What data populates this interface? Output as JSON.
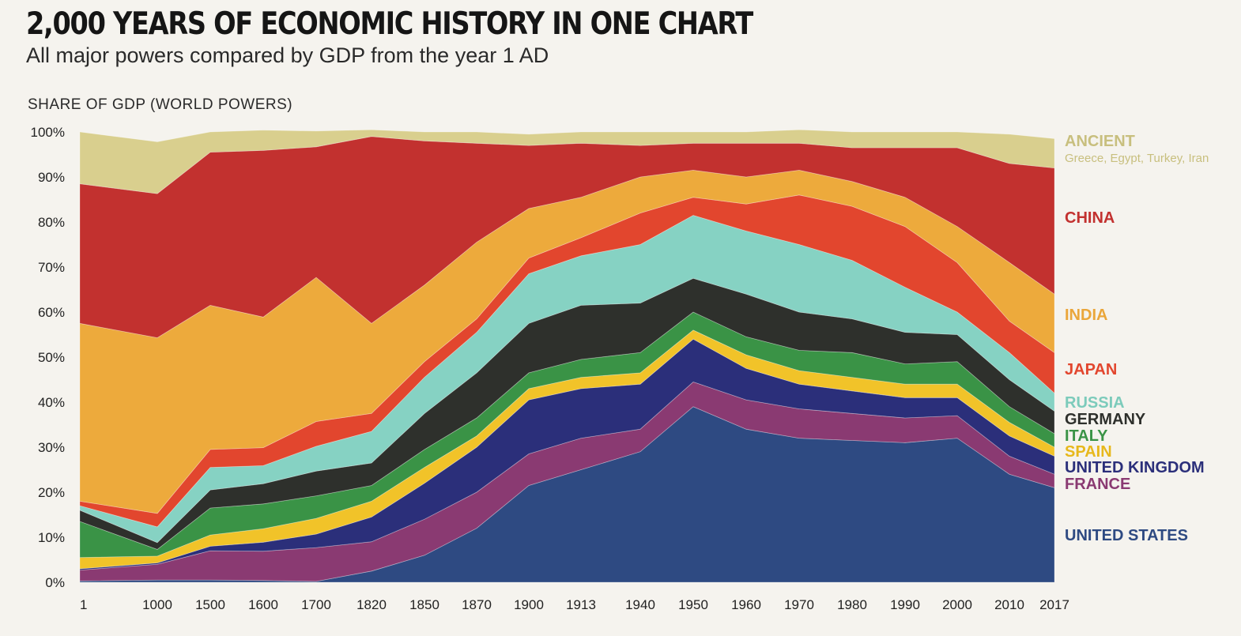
{
  "header": {
    "title": "2,000 YEARS OF ECONOMIC HISTORY IN ONE CHART",
    "subtitle": "All major powers compared by GDP from the year 1 AD"
  },
  "chart_data": {
    "type": "area",
    "title": "2,000 YEARS OF ECONOMIC HISTORY IN ONE CHART",
    "subtitle": "All major powers compared by GDP from the year 1 AD",
    "ylabel": "SHARE OF GDP (WORLD POWERS)",
    "xlabel": "",
    "stacked": true,
    "ylim": [
      0,
      100
    ],
    "y_ticks": [
      "0%",
      "10%",
      "20%",
      "30%",
      "40%",
      "50%",
      "60%",
      "70%",
      "80%",
      "90%",
      "100%"
    ],
    "categories": [
      "1",
      "1000",
      "1500",
      "1600",
      "1700",
      "1820",
      "1850",
      "1870",
      "1900",
      "1913",
      "1940",
      "1950",
      "1960",
      "1970",
      "1980",
      "1990",
      "2000",
      "2010",
      "2017"
    ],
    "legend_position": "right",
    "series": [
      {
        "name": "UNITED STATES",
        "color": "#2e4a82",
        "values": [
          0.3,
          0.5,
          0.5,
          0.4,
          0.2,
          2.5,
          6,
          12,
          21.5,
          25,
          29,
          39,
          34,
          32,
          31.5,
          31,
          32,
          24,
          21
        ]
      },
      {
        "name": "FRANCE",
        "color": "#8a3a72",
        "values": [
          2.4,
          3.5,
          6.5,
          6.5,
          7.5,
          6.5,
          8,
          8,
          7,
          7,
          5,
          5.5,
          6.5,
          6.5,
          6,
          5.5,
          5,
          4,
          3
        ]
      },
      {
        "name": "UNITED KINGDOM",
        "color": "#2b2f7a",
        "values": [
          0.3,
          0.3,
          1,
          2,
          3,
          5.5,
          8,
          10,
          12,
          11,
          10,
          9.5,
          7,
          5.5,
          5,
          4.5,
          4,
          4.5,
          4
        ]
      },
      {
        "name": "SPAIN",
        "color": "#f1c329",
        "values": [
          2.5,
          1.5,
          2.5,
          3,
          3.5,
          3.5,
          3.5,
          2.5,
          2.5,
          2.5,
          2.5,
          2,
          3,
          3,
          3,
          3,
          3,
          3,
          2
        ]
      },
      {
        "name": "ITALY",
        "color": "#3a9346",
        "values": [
          8,
          1.5,
          6,
          5.5,
          5,
          3.5,
          4,
          4,
          3.5,
          4,
          4.5,
          4,
          4,
          4.5,
          5.5,
          4.5,
          5,
          3.5,
          3
        ]
      },
      {
        "name": "GERMANY",
        "color": "#2e302c",
        "values": [
          2.5,
          1.5,
          4,
          4.5,
          5.5,
          5,
          8,
          10,
          11,
          12,
          11,
          7.5,
          9.5,
          8.5,
          7.5,
          7,
          6,
          6,
          5
        ]
      },
      {
        "name": "RUSSIA",
        "color": "#86d2c3",
        "values": [
          1,
          3.5,
          5,
          4,
          5.5,
          7,
          8,
          9,
          11,
          11,
          13,
          14,
          14,
          15,
          13,
          10,
          5,
          6,
          4
        ]
      },
      {
        "name": "JAPAN",
        "color": "#e2462e",
        "values": [
          1,
          3,
          4,
          4,
          5.5,
          4,
          3.5,
          3,
          3.5,
          4,
          7,
          4,
          6,
          11,
          12,
          13.5,
          11,
          7,
          9
        ]
      },
      {
        "name": "INDIA",
        "color": "#edaa3c",
        "values": [
          39.5,
          39,
          32,
          29,
          32,
          20,
          17,
          17,
          11,
          9,
          8,
          6,
          6,
          5.5,
          5.5,
          6.5,
          8,
          13,
          13
        ]
      },
      {
        "name": "CHINA",
        "color": "#c2312f",
        "values": [
          31,
          32,
          34,
          37,
          29,
          41.5,
          32,
          22,
          14,
          12,
          7,
          6,
          7.5,
          6,
          7.5,
          11,
          17.5,
          22,
          28
        ]
      },
      {
        "name": "ANCIENT",
        "color": "#d9cf8e",
        "values": [
          11.5,
          11.5,
          4.5,
          4.5,
          3.5,
          1.5,
          2,
          2.5,
          2.5,
          2.5,
          3,
          2.5,
          2.5,
          3,
          3.5,
          3.5,
          3.5,
          6.5,
          6.5
        ]
      }
    ],
    "legend": [
      {
        "label": "ANCIENT",
        "sub": "Greece, Egypt, Turkey, Iran",
        "color": "#c8bf7e"
      },
      {
        "label": "CHINA",
        "color": "#c2312f"
      },
      {
        "label": "INDIA",
        "color": "#eaa63a"
      },
      {
        "label": "JAPAN",
        "color": "#e2462e"
      },
      {
        "label": "RUSSIA",
        "color": "#7ccbbb"
      },
      {
        "label": "GERMANY",
        "color": "#2e302c"
      },
      {
        "label": "ITALY",
        "color": "#3a9346"
      },
      {
        "label": "SPAIN",
        "color": "#e7b81c"
      },
      {
        "label": "UNITED KINGDOM",
        "color": "#2b2f7a"
      },
      {
        "label": "FRANCE",
        "color": "#8a3a72"
      },
      {
        "label": "UNITED STATES",
        "color": "#2e4a82"
      }
    ]
  }
}
